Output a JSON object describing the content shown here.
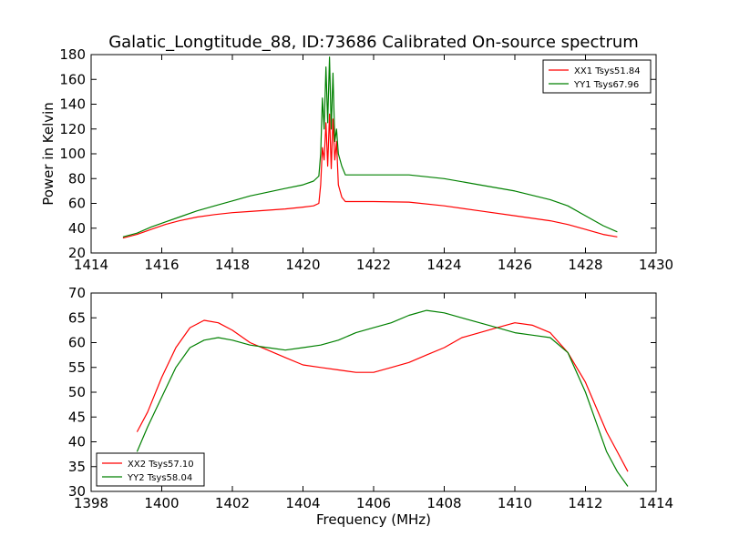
{
  "title": "Galatic_Longtitude_88, ID:73686 Calibrated On-source spectrum",
  "chart_data": [
    {
      "type": "line",
      "xlabel": "",
      "ylabel": "Power in Kelvin",
      "xlim": [
        1414,
        1430
      ],
      "ylim": [
        20,
        180
      ],
      "xticks": [
        1414,
        1416,
        1418,
        1420,
        1422,
        1424,
        1426,
        1428,
        1430
      ],
      "yticks": [
        20,
        40,
        60,
        80,
        100,
        120,
        140,
        160,
        180
      ],
      "legend_position": "top-right",
      "series": [
        {
          "name": "XX1 Tsys51.84",
          "color": "#ff0000",
          "points": [
            [
              1414.9,
              32
            ],
            [
              1415.3,
              35
            ],
            [
              1415.7,
              39
            ],
            [
              1416.1,
              43
            ],
            [
              1416.5,
              46
            ],
            [
              1417.0,
              49
            ],
            [
              1417.5,
              51
            ],
            [
              1418.0,
              52.5
            ],
            [
              1418.5,
              53.5
            ],
            [
              1419.0,
              54.5
            ],
            [
              1419.5,
              55.5
            ],
            [
              1420.0,
              57
            ],
            [
              1420.3,
              58
            ],
            [
              1420.45,
              60
            ],
            [
              1420.5,
              75
            ],
            [
              1420.55,
              105
            ],
            [
              1420.6,
              95
            ],
            [
              1420.65,
              125
            ],
            [
              1420.7,
              90
            ],
            [
              1420.75,
              132
            ],
            [
              1420.8,
              88
            ],
            [
              1420.85,
              128
            ],
            [
              1420.9,
              95
            ],
            [
              1420.95,
              110
            ],
            [
              1421.0,
              75
            ],
            [
              1421.1,
              65
            ],
            [
              1421.2,
              61.5
            ],
            [
              1422.0,
              61.5
            ],
            [
              1423.0,
              61
            ],
            [
              1424.0,
              58
            ],
            [
              1425.0,
              54
            ],
            [
              1426.0,
              50
            ],
            [
              1427.0,
              46
            ],
            [
              1427.5,
              43
            ],
            [
              1428.0,
              39
            ],
            [
              1428.5,
              35
            ],
            [
              1428.9,
              33
            ]
          ]
        },
        {
          "name": "YY1 Tsys67.96",
          "color": "#008000",
          "points": [
            [
              1414.9,
              33
            ],
            [
              1415.3,
              36
            ],
            [
              1415.7,
              41
            ],
            [
              1416.1,
              45
            ],
            [
              1416.5,
              49
            ],
            [
              1417.0,
              54
            ],
            [
              1417.5,
              58
            ],
            [
              1418.0,
              62
            ],
            [
              1418.5,
              66
            ],
            [
              1419.0,
              69
            ],
            [
              1419.5,
              72
            ],
            [
              1420.0,
              75
            ],
            [
              1420.3,
              78
            ],
            [
              1420.45,
              82
            ],
            [
              1420.5,
              100
            ],
            [
              1420.55,
              145
            ],
            [
              1420.6,
              120
            ],
            [
              1420.65,
              170
            ],
            [
              1420.7,
              125
            ],
            [
              1420.75,
              178
            ],
            [
              1420.8,
              120
            ],
            [
              1420.85,
              165
            ],
            [
              1420.9,
              110
            ],
            [
              1420.95,
              120
            ],
            [
              1421.0,
              100
            ],
            [
              1421.1,
              90
            ],
            [
              1421.2,
              83
            ],
            [
              1422.0,
              83
            ],
            [
              1423.0,
              83
            ],
            [
              1424.0,
              80
            ],
            [
              1425.0,
              75
            ],
            [
              1426.0,
              70
            ],
            [
              1427.0,
              63
            ],
            [
              1427.5,
              58
            ],
            [
              1428.0,
              50
            ],
            [
              1428.5,
              42
            ],
            [
              1428.9,
              37
            ]
          ]
        }
      ]
    },
    {
      "type": "line",
      "xlabel": "Frequency (MHz)",
      "ylabel": "",
      "xlim": [
        1398,
        1414
      ],
      "ylim": [
        30,
        70
      ],
      "xticks": [
        1398,
        1400,
        1402,
        1404,
        1406,
        1408,
        1410,
        1412,
        1414
      ],
      "yticks": [
        30,
        35,
        40,
        45,
        50,
        55,
        60,
        65,
        70
      ],
      "legend_position": "bottom-left",
      "series": [
        {
          "name": "XX2 Tsys57.10",
          "color": "#ff0000",
          "points": [
            [
              1399.3,
              42
            ],
            [
              1399.6,
              46
            ],
            [
              1400.0,
              53
            ],
            [
              1400.4,
              59
            ],
            [
              1400.8,
              63
            ],
            [
              1401.2,
              64.5
            ],
            [
              1401.6,
              64
            ],
            [
              1402.0,
              62.5
            ],
            [
              1402.5,
              60
            ],
            [
              1403.0,
              58.5
            ],
            [
              1403.5,
              57
            ],
            [
              1404.0,
              55.5
            ],
            [
              1404.5,
              55
            ],
            [
              1405.0,
              54.5
            ],
            [
              1405.5,
              54
            ],
            [
              1406.0,
              54
            ],
            [
              1406.5,
              55
            ],
            [
              1407.0,
              56
            ],
            [
              1407.5,
              57.5
            ],
            [
              1408.0,
              59
            ],
            [
              1408.5,
              61
            ],
            [
              1409.0,
              62
            ],
            [
              1409.5,
              63
            ],
            [
              1410.0,
              64
            ],
            [
              1410.5,
              63.5
            ],
            [
              1411.0,
              62
            ],
            [
              1411.5,
              58
            ],
            [
              1412.0,
              52
            ],
            [
              1412.3,
              47
            ],
            [
              1412.6,
              42
            ],
            [
              1412.9,
              38
            ],
            [
              1413.2,
              34
            ]
          ]
        },
        {
          "name": "YY2 Tsys58.04",
          "color": "#008000",
          "points": [
            [
              1399.3,
              38
            ],
            [
              1399.6,
              43
            ],
            [
              1400.0,
              49
            ],
            [
              1400.4,
              55
            ],
            [
              1400.8,
              59
            ],
            [
              1401.2,
              60.5
            ],
            [
              1401.6,
              61
            ],
            [
              1402.0,
              60.5
            ],
            [
              1402.5,
              59.5
            ],
            [
              1403.0,
              59
            ],
            [
              1403.5,
              58.5
            ],
            [
              1404.0,
              59
            ],
            [
              1404.5,
              59.5
            ],
            [
              1405.0,
              60.5
            ],
            [
              1405.5,
              62
            ],
            [
              1406.0,
              63
            ],
            [
              1406.5,
              64
            ],
            [
              1407.0,
              65.5
            ],
            [
              1407.5,
              66.5
            ],
            [
              1408.0,
              66
            ],
            [
              1408.5,
              65
            ],
            [
              1409.0,
              64
            ],
            [
              1409.5,
              63
            ],
            [
              1410.0,
              62
            ],
            [
              1410.5,
              61.5
            ],
            [
              1411.0,
              61
            ],
            [
              1411.5,
              58
            ],
            [
              1412.0,
              50
            ],
            [
              1412.3,
              44
            ],
            [
              1412.6,
              38
            ],
            [
              1412.9,
              34
            ],
            [
              1413.2,
              31
            ]
          ]
        }
      ]
    }
  ]
}
